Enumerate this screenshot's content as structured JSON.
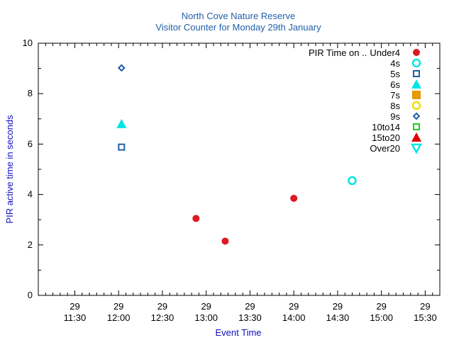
{
  "chart_data": {
    "type": "scatter",
    "title": "North Cove Nature Reserve",
    "subtitle": "Visitor Counter for Monday 29th January",
    "xlabel": "Event Time",
    "ylabel": "PIR active time in seconds",
    "xlim": [
      "11:05",
      "15:40"
    ],
    "ylim": [
      0,
      10
    ],
    "yticks": [
      0,
      2,
      4,
      6,
      8,
      10
    ],
    "xticks": [
      {
        "day": "29",
        "time": "11:30"
      },
      {
        "day": "29",
        "time": "12:00"
      },
      {
        "day": "29",
        "time": "12:30"
      },
      {
        "day": "29",
        "time": "13:00"
      },
      {
        "day": "29",
        "time": "13:30"
      },
      {
        "day": "29",
        "time": "14:00"
      },
      {
        "day": "29",
        "time": "14:30"
      },
      {
        "day": "29",
        "time": "15:00"
      },
      {
        "day": "29",
        "time": "15:30"
      }
    ],
    "legend_title": "PIR Time on ..",
    "legend_position": "top-right",
    "grid": false,
    "series": [
      {
        "name": "Under4",
        "marker": "circle-filled",
        "color": "#dd1a22",
        "points": [
          {
            "x": "12:53",
            "y": 3.05
          },
          {
            "x": "13:13",
            "y": 2.15
          },
          {
            "x": "14:00",
            "y": 3.85
          }
        ]
      },
      {
        "name": "4s",
        "marker": "circle-open",
        "color": "#00e5e5",
        "points": [
          {
            "x": "14:40",
            "y": 4.55
          }
        ]
      },
      {
        "name": "5s",
        "marker": "square-open",
        "color": "#1f5fa8",
        "points": [
          {
            "x": "12:02",
            "y": 5.88
          }
        ]
      },
      {
        "name": "6s",
        "marker": "triangle-filled",
        "color": "#00e5e5",
        "points": [
          {
            "x": "12:02",
            "y": 6.8
          }
        ]
      },
      {
        "name": "7s",
        "marker": "square-filled",
        "color": "#e59a00",
        "points": []
      },
      {
        "name": "8s",
        "marker": "circle-open",
        "color": "#f0e000",
        "points": []
      },
      {
        "name": "9s",
        "marker": "diamond-open",
        "color": "#1f5fa8",
        "points": [
          {
            "x": "12:02",
            "y": 9.02
          }
        ]
      },
      {
        "name": "10to14",
        "marker": "square-open",
        "color": "#22cc22",
        "points": []
      },
      {
        "name": "15to20",
        "marker": "triangle-filled",
        "color": "#dd0000",
        "points": []
      },
      {
        "name": "Over20",
        "marker": "triangle-down-open",
        "color": "#00e5e5",
        "points": []
      }
    ]
  }
}
